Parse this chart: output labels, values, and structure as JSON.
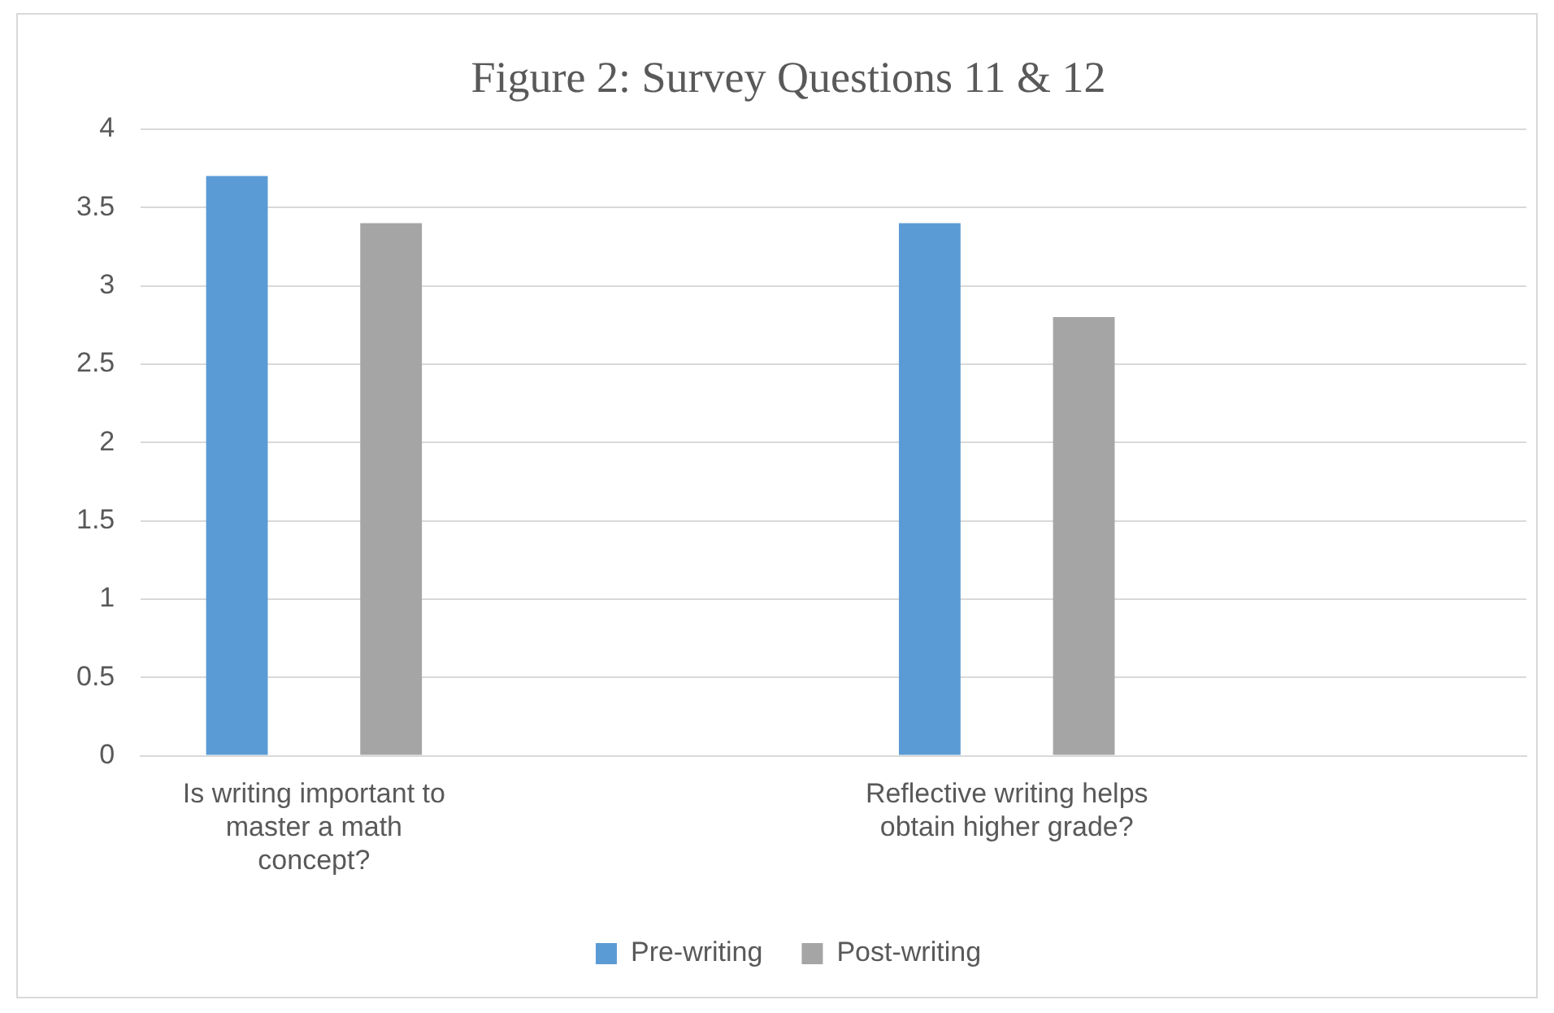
{
  "chart_data": {
    "type": "bar",
    "title": "Figure 2: Survey Questions 11 & 12",
    "categories": [
      "Is writing important to master a math concept?",
      null,
      "Reflective writing helps obtain higher grade?",
      null
    ],
    "series": [
      {
        "name": "Pre-writing",
        "color": "#5b9bd5",
        "values": [
          3.7,
          null,
          3.4,
          null
        ]
      },
      {
        "name": "Post-writing",
        "color": "#a5a5a5",
        "values": [
          3.4,
          null,
          2.8,
          null
        ]
      }
    ],
    "ylim": [
      0,
      4
    ],
    "yticks": [
      0,
      0.5,
      1,
      1.5,
      2,
      2.5,
      3,
      3.5,
      4
    ],
    "grid": "y",
    "legend": "bottom"
  }
}
